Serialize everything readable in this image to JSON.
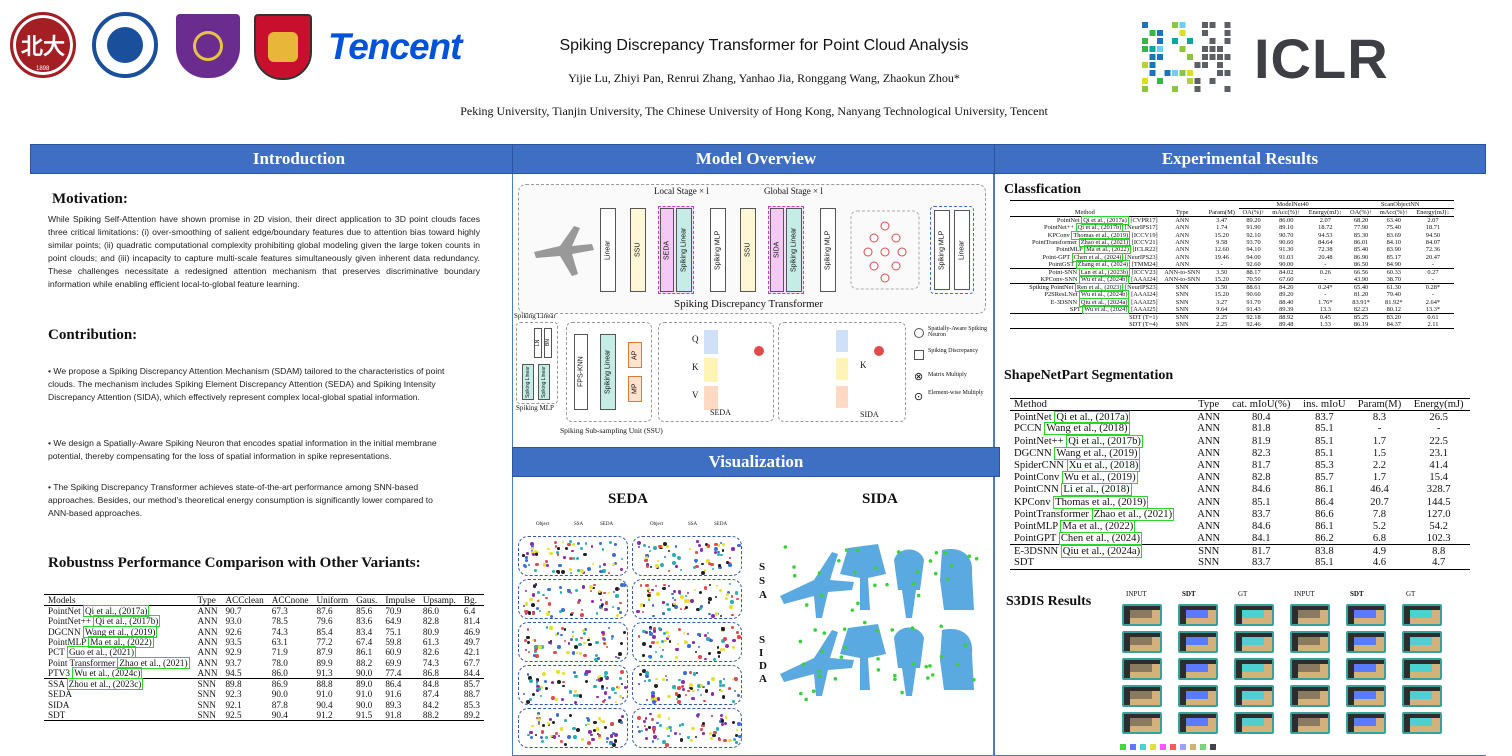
{
  "header": {
    "title": "Spiking Discrepancy Transformer for Point Cloud Analysis",
    "authors": "Yijie Lu, Zhiyi Pan, Renrui Zhang, Yanhao Jia, Ronggang Wang, Zhaokun Zhou*",
    "affiliations": "Peking University,  Tianjin University, The Chinese University of Hong Kong, Nanyang Technological University, Tencent",
    "logo_tencent": "Tencent",
    "logo_iclr": "ICLR",
    "logo_pku_year": "1898"
  },
  "sections": {
    "intro": "Introduction",
    "model": "Model Overview",
    "vis": "Visualization",
    "results": "Experimental Results"
  },
  "intro": {
    "motivation_title": "Motivation:",
    "motivation_text": "While Spiking Self-Attention have shown promise in 2D vision, their direct application to 3D point clouds faces three critical limitations: (i) over-smoothing of salient edge/boundary features due to attention bias toward highly similar points; (ii) quadratic computational complexity prohibiting global modeling given the large token counts in point clouds; and (iii) incapacity to capture multi-scale features simultaneously given inherent data redundancy. These challenges necessitate a redesigned attention mechanism that preserves discriminative boundary information while enabling efficient local-to-global feature learning.",
    "contribution_title": "Contribution:",
    "contrib1": "• We propose a Spiking Discrepancy Attention Mechanism (SDAM) tailored to the characteristics of point clouds. The mechanism includes Spiking Element Discrepancy Attention (SEDA) and Spiking Intensity Discrepancy Attention (SIDA), which effectively represent complex local-global spatial information.",
    "contrib2": "• We design a Spatially-Aware Spiking Neuron that encodes spatial information in the initial membrane potential, thereby compensating for the loss of spatial information in spike representations.",
    "contrib3": "• The Spiking Discrepancy Transformer achieves state-of-the-art performance among SNN-based approaches. Besides, our method’s theoretical energy consumption is significantly lower compared to ANN-based approaches.",
    "robust_title": "Robustnss Performance Comparison with Other Variants:"
  },
  "robust_table": {
    "headers": [
      "Models",
      "Type",
      "ACCclean",
      "ACCnone",
      "Uniform",
      "Gaus.",
      "Impulse",
      "Upsamp.",
      "Bg."
    ],
    "rows": [
      [
        "PointNet",
        "Qi et al., (2017a)",
        "ANN",
        "90.7",
        "67.3",
        "87.6",
        "85.6",
        "70.9",
        "86.0",
        "6.4"
      ],
      [
        "PointNet++",
        "Qi et al., (2017b)",
        "ANN",
        "93.0",
        "78.5",
        "79.6",
        "83.6",
        "64.9",
        "82.8",
        "81.4"
      ],
      [
        "DGCNN",
        "Wang et al., (2019)",
        "ANN",
        "92.6",
        "74.3",
        "85.4",
        "83.4",
        "75.1",
        "80.9",
        "46.9"
      ],
      [
        "PointMLP",
        "Ma et al., (2022)",
        "ANN",
        "93.5",
        "63.1",
        "77.2",
        "67.4",
        "59.8",
        "61.3",
        "49.7"
      ],
      [
        "PCT",
        "Guo et al., (2021)",
        "ANN",
        "92.9",
        "71.9",
        "87.9",
        "86.1",
        "60.9",
        "82.6",
        "42.1"
      ],
      [
        "Point Transformer",
        "Zhao et al., (2021)",
        "ANN",
        "93.7",
        "78.0",
        "89.9",
        "88.2",
        "69.9",
        "74.3",
        "67.7"
      ],
      [
        "PTV3",
        "Wu et al., (2024c)",
        "ANN",
        "94.5",
        "86.0",
        "91.3",
        "90.0",
        "77.4",
        "86.8",
        "84.4"
      ],
      [
        "SSA",
        "Zhou et al., (2023c)",
        "SNN",
        "89.8",
        "86.9",
        "88.8",
        "89.0",
        "86.4",
        "84.8",
        "85.7"
      ],
      [
        "SEDA",
        "",
        "SNN",
        "92.3",
        "90.0",
        "91.0",
        "91.0",
        "91.6",
        "87.4",
        "88.7"
      ],
      [
        "SIDA",
        "",
        "SNN",
        "92.1",
        "87.8",
        "90.4",
        "90.0",
        "89.3",
        "84.2",
        "85.3"
      ],
      [
        "SDT",
        "",
        "SNN",
        "92.5",
        "90.4",
        "91.2",
        "91.5",
        "91.8",
        "88.2",
        "89.2"
      ]
    ]
  },
  "model": {
    "local_stage": "Local Stage × l",
    "global_stage": "Global Stage × l",
    "sdt_label": "Spiking Discrepancy Transformer",
    "linear": "Linear",
    "ssu": "SSU",
    "seda": "SEDA",
    "sida": "SIDA",
    "spiking_linear": "Spiking Linear",
    "spiking_mlp": "Spiking MLP",
    "fps_knn": "FPS-KNN",
    "ap": "AP",
    "mp": "MP",
    "ssu_full": "Spiking Sub-sampling Unit (SSU)",
    "q": "Q",
    "k": "K",
    "v": "V",
    "kt": "K",
    "legend1": "Spatially-Aware Spiking Neuron",
    "legend2": "Spiking Discrepancy",
    "legend3": "Matrix Multiply",
    "legend4": "Element-wise Multiply",
    "ln": "LN",
    "bn": "BN"
  },
  "vis": {
    "seda": "SEDA",
    "sida": "SIDA",
    "col_object": "Object",
    "col_ssa": "SSA",
    "col_seda": "SEDA",
    "side_ssa": "S S A",
    "side_sida": "S I D A"
  },
  "results": {
    "cls_title": "Classfication",
    "seg_title": "ShapeNetPart Segmentation",
    "s3dis_title": "S3DIS Results",
    "s3dis_cols": [
      "INPUT",
      "SDT",
      "GT",
      "INPUT",
      "SDT",
      "GT"
    ]
  },
  "cls_table": {
    "group1": "ModelNet40",
    "group2": "ScanObjectNN",
    "headers": [
      "Method",
      "Type",
      "Param(M)",
      "OA(%)↑",
      "mAcc(%)↑",
      "Energy(mJ)↓",
      "OA(%)↑",
      "mAcc(%)↑",
      "Energy(mJ)↓"
    ],
    "rows": [
      [
        "PointNet",
        "Qi et al., (2017a)",
        "[CVPR17]",
        "ANN",
        "3.47",
        "89.20",
        "86.00",
        "2.07",
        "68.20",
        "63.40",
        "2.07"
      ],
      [
        "PointNet++",
        "Qi et al., (2017b)",
        "[NeurIPS17]",
        "ANN",
        "1.74",
        "91.90",
        "89.10",
        "18.72",
        "77.90",
        "75.40",
        "18.71"
      ],
      [
        "KPConv",
        "Thomas et al., (2019)",
        "[ICCV19]",
        "ANN",
        "15.20",
        "92.10",
        "90.70",
        "94.53",
        "85.30",
        "83.69",
        "94.50"
      ],
      [
        "PointTransformer",
        "Zhao et al., (2021)",
        "[ICCV21]",
        "ANN",
        "9.58",
        "93.70",
        "90.60",
        "84.64",
        "86.01",
        "84.10",
        "84.07"
      ],
      [
        "PointMLP",
        "Ma et al., (2022)",
        "[ICLR22]",
        "ANN",
        "12.60",
        "94.10",
        "91.30",
        "72.38",
        "85.40",
        "83.90",
        "72.36"
      ],
      [
        "Point-GPT",
        "Chen et al., (2024)",
        "[NeurIPS23]",
        "ANN",
        "19.46",
        "94.00",
        "91.03",
        "20.48",
        "86.90",
        "85.17",
        "20.47"
      ],
      [
        "PointGST",
        "Zhang et al., (2024)",
        "[TMM24]",
        "ANN",
        "-",
        "92.60",
        "90.00",
        "-",
        "86.50",
        "84.90",
        "-"
      ],
      [
        "Point-SNN",
        "Lan et al., (2023b)",
        "[ICCV23]",
        "ANN-to-SNN",
        "3.50",
        "88.17",
        "84.02",
        "0.26",
        "66.56",
        "60.33",
        "0.27"
      ],
      [
        "KPConv-SNN",
        "Wu et al., (2024b)",
        "[AAAI24]",
        "ANN-to-SNN",
        "15.20",
        "70.50",
        "67.60",
        "-",
        "43.90",
        "38.70",
        "-"
      ],
      [
        "Spiking PointNet",
        "Ren et al., (2023)",
        "[NeurIPS23]",
        "SNN",
        "3.50",
        "88.61",
        "84.20",
        "0.24*",
        "65.40",
        "61.30",
        "0.28*"
      ],
      [
        "P2SResLNet",
        "Wu et al., (2024b)",
        "[AAAI24]",
        "SNN",
        "15.20",
        "90.60",
        "89.20",
        "-",
        "81.20",
        "79.40",
        "-"
      ],
      [
        "E-3DSNN",
        "Qiu et al., (2024a)",
        "[AAAI25]",
        "SNN",
        "3.27",
        "91.70",
        "88.40",
        "1.76*",
        "83.91*",
        "81.92*",
        "2.64*"
      ],
      [
        "SPT",
        "Wu et al., (2024)",
        "[AAAI25]",
        "SNN",
        "9.64",
        "91.43",
        "89.39",
        "13.3",
        "82.23",
        "80.12",
        "13.3*"
      ],
      [
        "SDT (T=1)",
        "",
        "",
        "SNN",
        "2.25",
        "92.18",
        "88.92",
        "0.45",
        "85.25",
        "83.20",
        "0.61"
      ],
      [
        "SDT (T=4)",
        "",
        "",
        "SNN",
        "2.25",
        "92.46",
        "89.48",
        "1.33",
        "86.19",
        "84.37",
        "2.11"
      ]
    ]
  },
  "seg_table": {
    "headers": [
      "Method",
      "Type",
      "cat. mIoU(%)",
      "ins. mIoU",
      "Param(M)",
      "Energy(mJ)"
    ],
    "rows": [
      [
        "PointNet",
        "Qi et al., (2017a)",
        "ANN",
        "80.4",
        "83.7",
        "8.3",
        "26.5"
      ],
      [
        "PCCN",
        "Wang et al., (2018)",
        "ANN",
        "81.8",
        "85.1",
        "-",
        "-"
      ],
      [
        "PointNet++",
        "Qi et al., (2017b)",
        "ANN",
        "81.9",
        "85.1",
        "1.7",
        "22.5"
      ],
      [
        "DGCNN",
        "Wang et al., (2019)",
        "ANN",
        "82.3",
        "85.1",
        "1.5",
        "23.1"
      ],
      [
        "SpiderCNN",
        "Xu et al., (2018)",
        "ANN",
        "81.7",
        "85.3",
        "2.2",
        "41.4"
      ],
      [
        "PointConv",
        "Wu et al., (2019)",
        "ANN",
        "82.8",
        "85.7",
        "1.7",
        "15.4"
      ],
      [
        "PointCNN",
        "Li et al., (2018)",
        "ANN",
        "84.6",
        "86.1",
        "46.4",
        "328.7"
      ],
      [
        "KPConv",
        "Thomas et al., (2019)",
        "ANN",
        "85.1",
        "86.4",
        "20.7",
        "144.5"
      ],
      [
        "PointTransformer",
        "Zhao et al., (2021)",
        "ANN",
        "83.7",
        "86.6",
        "7.8",
        "127.0"
      ],
      [
        "PointMLP",
        "Ma et al., (2022)",
        "ANN",
        "84.6",
        "86.1",
        "5.2",
        "54.2"
      ],
      [
        "PointGPT",
        "Chen et al., (2024)",
        "ANN",
        "84.1",
        "86.2",
        "6.8",
        "102.3"
      ],
      [
        "E-3DSNN",
        "Qiu et al., (2024a)",
        "SNN",
        "81.7",
        "83.8",
        "4.9",
        "8.8"
      ],
      [
        "SDT",
        "",
        "SNN",
        "83.7",
        "85.1",
        "4.6",
        "4.7"
      ]
    ]
  },
  "colors": {
    "bar": "#3f6fc2",
    "cite_box": "#2bd62b",
    "pku_red": "#a31f24",
    "tju_blue": "#1a4f9c",
    "cuhk_purple": "#6b2c8f",
    "tencent_blue": "#0052d9",
    "iclr_gray": "#3d3f45"
  }
}
